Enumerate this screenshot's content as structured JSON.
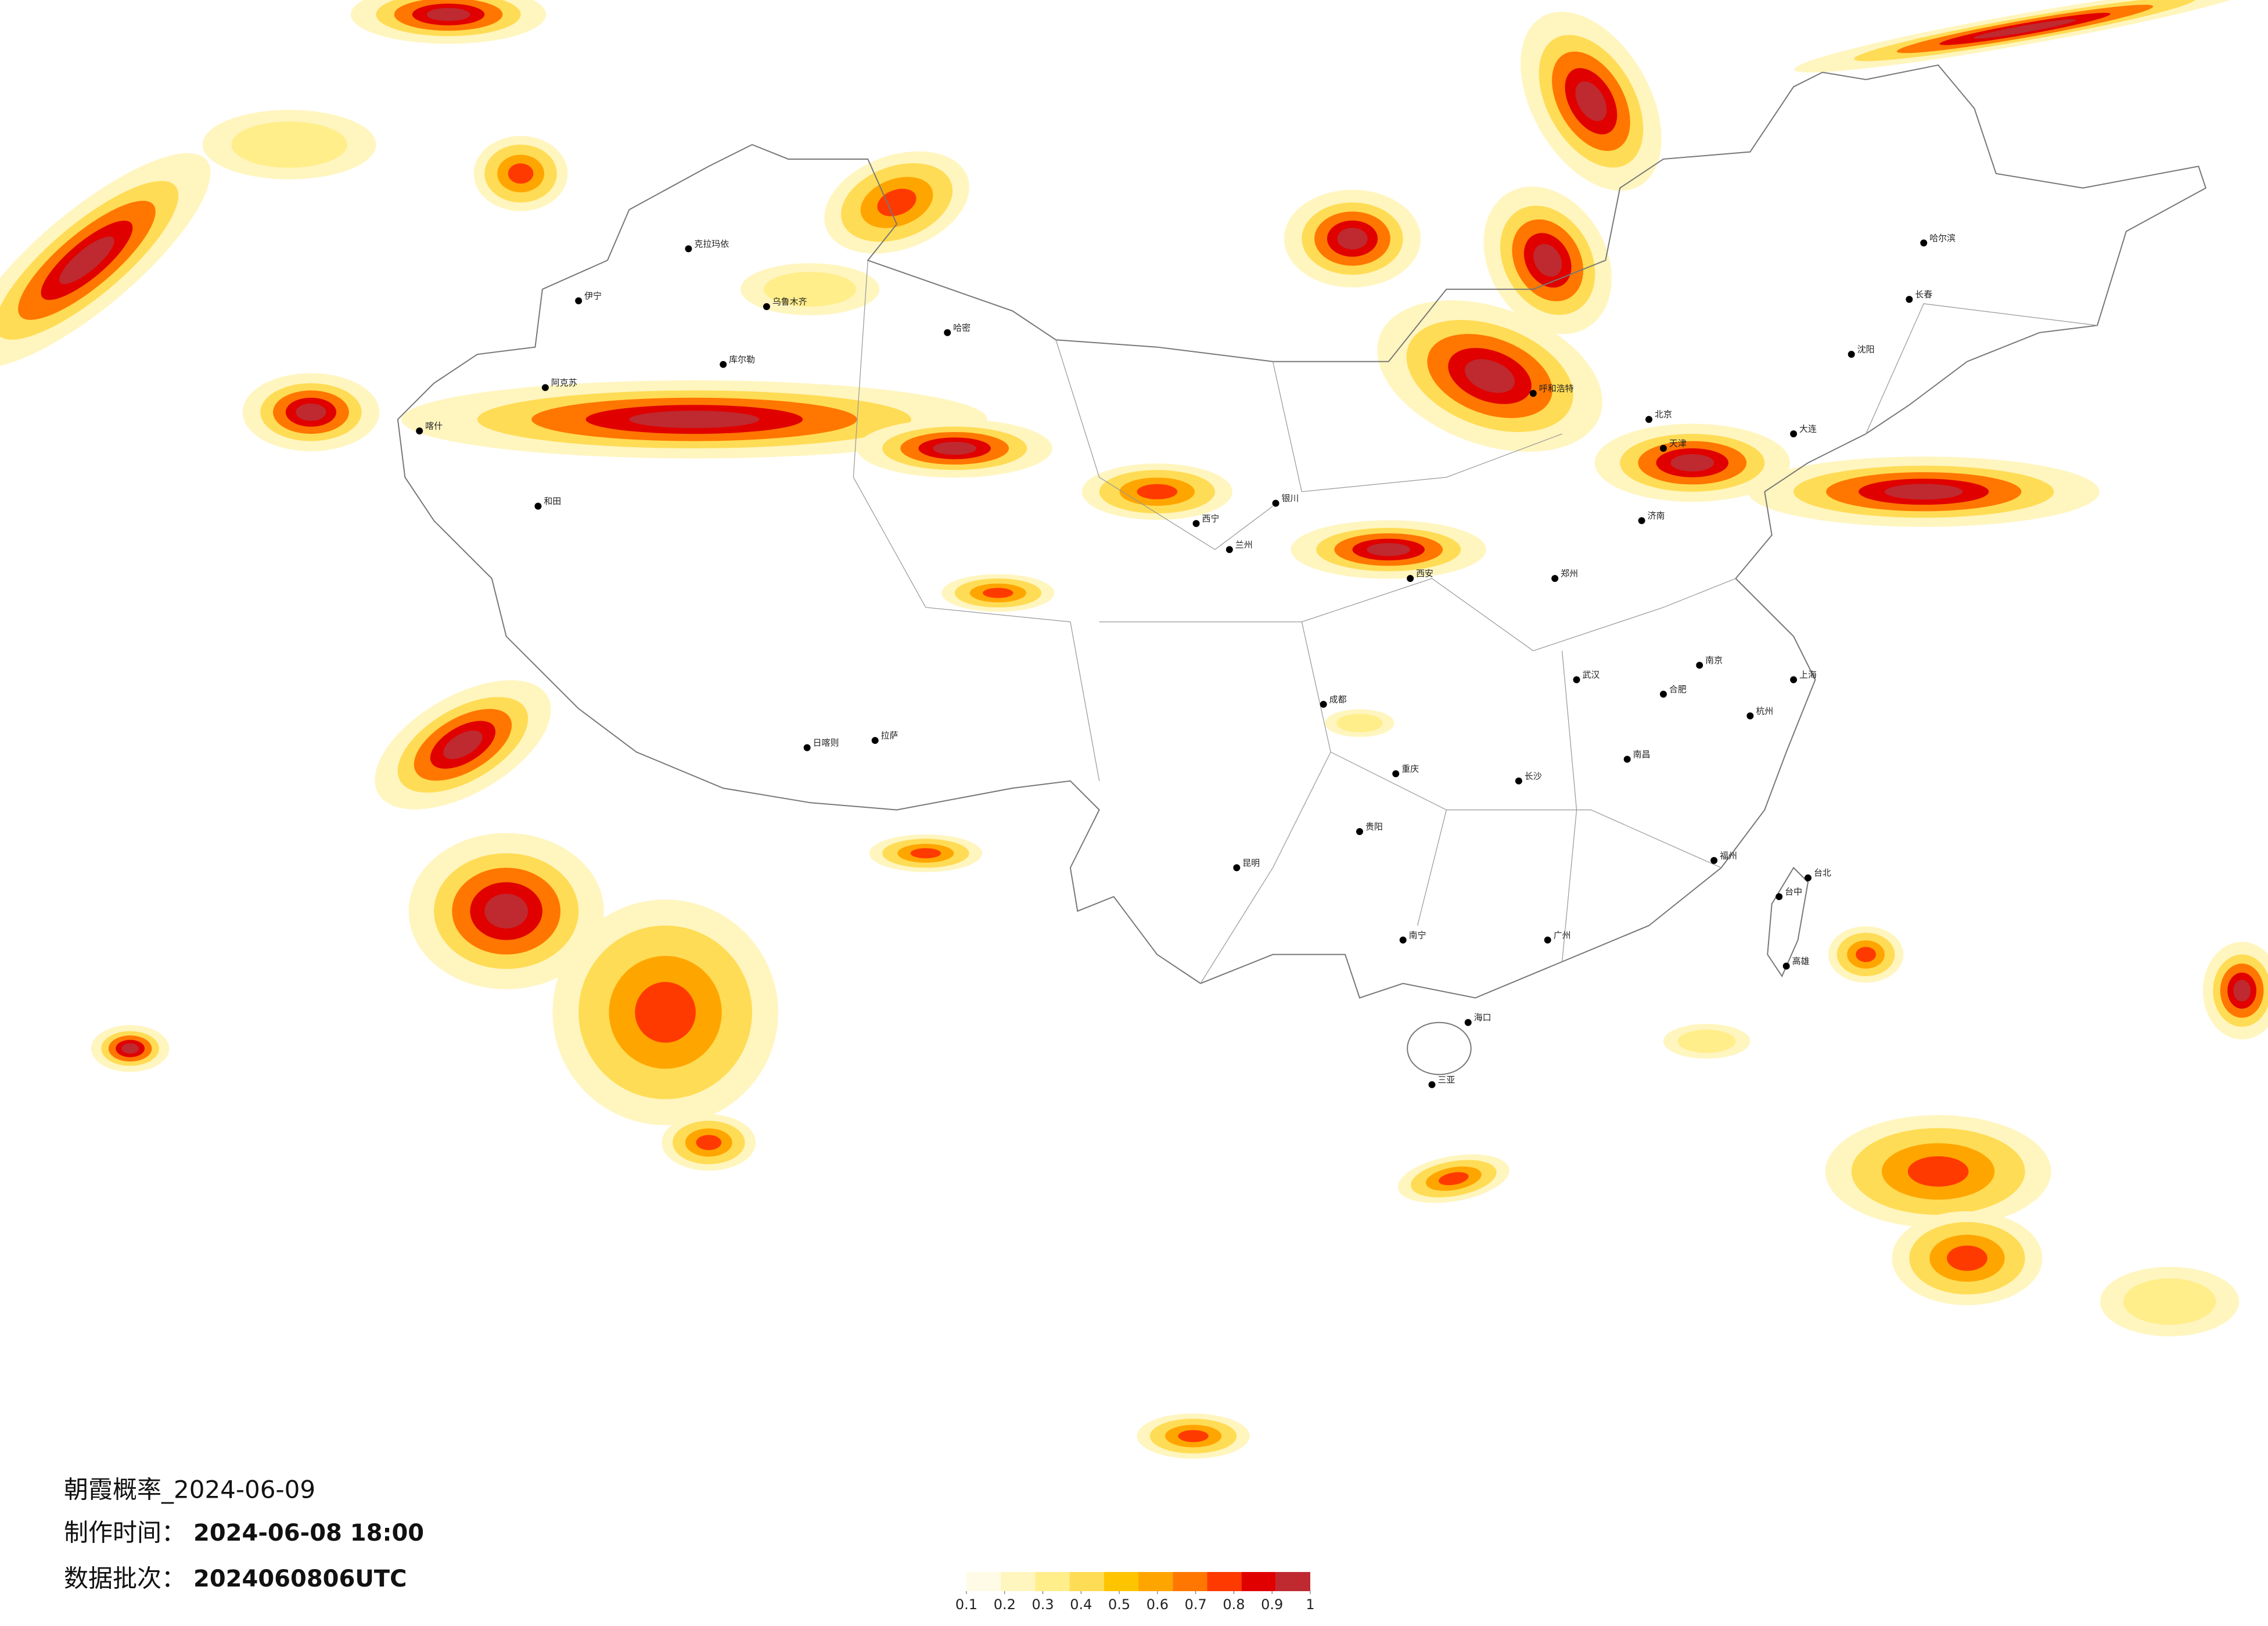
{
  "title": "朝霞概率_2024-06-09",
  "info": [
    {
      "label": "制作时间：",
      "value": "2024-06-08 18:00"
    },
    {
      "label": "数据批次：",
      "value": "2024060806UTC"
    }
  ],
  "colorbar": {
    "colors": [
      "#fffbe6",
      "#fff5bf",
      "#ffee8a",
      "#ffdc55",
      "#ffc400",
      "#ffa500",
      "#ff7700",
      "#ff3a00",
      "#e00000",
      "#be2a30"
    ],
    "ticks": [
      0.1,
      0.2,
      0.3,
      0.4,
      0.5,
      0.6,
      0.7,
      0.8,
      0.9,
      1
    ]
  },
  "cities": [
    "克拉玛依",
    "乌鲁木齐",
    "哈密",
    "伊宁",
    "阿克苏",
    "喀什",
    "和田",
    "库尔勒",
    "拉萨",
    "日喀则",
    "西宁",
    "兰州",
    "银川",
    "呼和浩特",
    "北京",
    "天津",
    "哈尔滨",
    "长春",
    "沈阳",
    "大连",
    "济南",
    "郑州",
    "西安",
    "成都",
    "重庆",
    "武汉",
    "长沙",
    "南昌",
    "杭州",
    "上海",
    "南京",
    "合肥",
    "福州",
    "贵阳",
    "昆明",
    "南宁",
    "广州",
    "海口",
    "三亚",
    "台北",
    "台中",
    "高雄"
  ]
}
